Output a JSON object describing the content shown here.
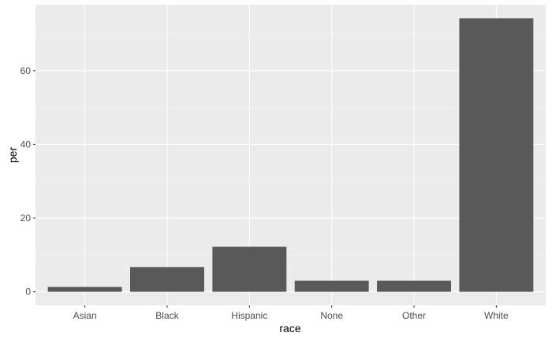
{
  "chart_data": {
    "type": "bar",
    "categories": [
      "Asian",
      "Black",
      "Hispanic",
      "None",
      "Other",
      "White"
    ],
    "values": [
      1.3,
      6.7,
      12.2,
      3.0,
      3.0,
      74.2
    ],
    "xlabel": "race",
    "ylabel": "per",
    "ylim": [
      -3.7,
      77.9
    ],
    "yticks": [
      0,
      20,
      40,
      60
    ],
    "grid": true,
    "colors": {
      "bar": "#595959",
      "panel": "#ebebeb",
      "grid_major": "#ffffff",
      "grid_minor": "#f5f5f5"
    }
  }
}
